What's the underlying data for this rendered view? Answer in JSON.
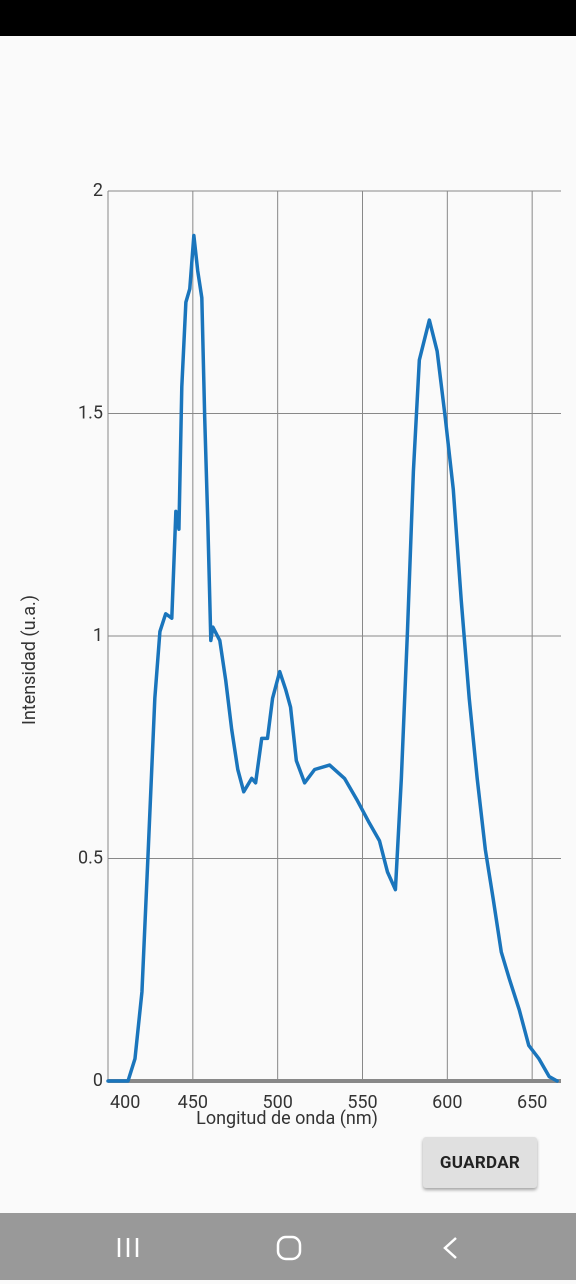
{
  "chart_data": {
    "type": "line",
    "xlabel": "Longitud de onda (nm)",
    "ylabel": "Intensidad (u.a.)",
    "x": [
      400,
      411.8,
      415.9,
      420,
      423.5,
      427.6,
      430.6,
      434,
      437.6,
      440,
      441.8,
      443.5,
      445.9,
      448.2,
      450.6,
      452.9,
      455.3,
      457,
      458.8,
      460.6,
      461.8,
      465.9,
      469.4,
      472.9,
      476.5,
      480,
      484.7,
      487,
      490.6,
      494,
      497,
      501.2,
      504.7,
      507.6,
      511,
      515.9,
      521.8,
      530.6,
      539.4,
      547,
      554,
      560,
      564.7,
      569.4,
      572.9,
      576.5,
      580,
      583.5,
      589.4,
      594,
      598.8,
      603.5,
      608.2,
      612.9,
      617.6,
      622.4,
      627,
      631.8,
      636.5,
      642.4,
      648,
      654,
      660,
      664.7
    ],
    "series": [
      {
        "name": "Intensidad",
        "color": "#1a75bc",
        "values": [
          0,
          0,
          0.05,
          0.2,
          0.5,
          0.86,
          1.01,
          1.05,
          1.04,
          1.28,
          1.24,
          1.56,
          1.75,
          1.78,
          1.9,
          1.82,
          1.76,
          1.49,
          1.26,
          0.99,
          1.02,
          0.99,
          0.9,
          0.79,
          0.7,
          0.65,
          0.68,
          0.67,
          0.77,
          0.77,
          0.86,
          0.92,
          0.88,
          0.84,
          0.72,
          0.67,
          0.7,
          0.71,
          0.68,
          0.63,
          0.58,
          0.54,
          0.47,
          0.43,
          0.68,
          1.01,
          1.37,
          1.62,
          1.71,
          1.64,
          1.49,
          1.33,
          1.08,
          0.86,
          0.68,
          0.52,
          0.41,
          0.29,
          0.23,
          0.16,
          0.08,
          0.05,
          0.01,
          0
        ]
      }
    ],
    "xlim": [
      400,
      667
    ],
    "xticks": [
      400,
      450,
      500,
      550,
      600,
      650
    ],
    "ylim": [
      0,
      2
    ],
    "yticks": [
      0,
      0.5,
      1,
      1.5,
      2
    ],
    "grid": true
  },
  "button": {
    "label": "GUARDAR"
  }
}
